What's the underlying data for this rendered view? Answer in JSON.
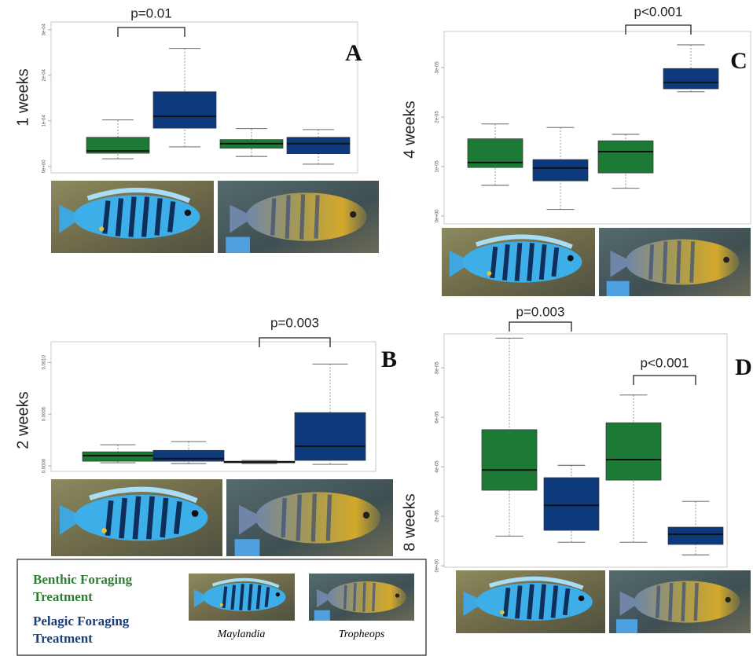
{
  "chart_data": [
    {
      "type": "box",
      "panel_label": "A",
      "ylabel": "1 weeks",
      "categories": [
        null,
        null,
        null,
        null
      ],
      "colors": [
        "#1c7a34",
        "#0d3a7c",
        "#1c7a34",
        "#0d3a7c"
      ],
      "values": [
        [
          1.7e-05,
          2.9e-05,
          3.4e-05,
          6.4e-05,
          0.000102
        ],
        [
          4.3e-05,
          8.4e-05,
          0.00011,
          0.000164,
          0.000259
        ],
        [
          2.2e-05,
          4e-05,
          5e-05,
          5.9e-05,
          8.3e-05
        ],
        [
          5e-06,
          2.8e-05,
          5e-05,
          6.4e-05,
          8.1e-05
        ]
      ],
      "ylim": [
        -1.4e-05,
        0.000317
      ],
      "yticks": [
        {
          "value": 0,
          "label": "0e+00"
        },
        {
          "value": 0.0001,
          "label": "1e-04"
        },
        {
          "value": 0.0002,
          "label": "2e-04"
        },
        {
          "value": 0.0003,
          "label": "3e-04"
        }
      ],
      "annotations": [
        "p=0.01"
      ]
    },
    {
      "type": "box",
      "panel_label": "B",
      "ylabel": "2 weeks",
      "categories": [
        null,
        null,
        null,
        null
      ],
      "colors": [
        "#1c7a34",
        "#0d3a7c",
        "#1c7a34",
        "#0d3a7c"
      ],
      "values": [
        [
          3e-05,
          4.5e-05,
          0.0001,
          0.000136,
          0.000205
        ],
        [
          2.3e-05,
          4.5e-05,
          7e-05,
          0.00015,
          0.000235
        ],
        [
          2.3e-05,
          3e-05,
          3.8e-05,
          4.5e-05,
          5.3e-05
        ],
        [
          1.5e-05,
          5.3e-05,
          0.00019,
          0.000515,
          0.000985
        ]
      ],
      "ylim": [
        -5.3e-05,
        0.0012
      ],
      "yticks": [
        {
          "value": 0,
          "label": "0.0000"
        },
        {
          "value": 0.0005,
          "label": "0.0005"
        },
        {
          "value": 0.001,
          "label": "0.0010"
        }
      ],
      "annotations": [
        "p=0.003"
      ]
    },
    {
      "type": "box",
      "panel_label": "C",
      "ylabel": "4 weeks",
      "categories": [
        null,
        null,
        null,
        null
      ],
      "colors": [
        "#1c7a34",
        "#0d3a7c",
        "#1c7a34",
        "#0d3a7c"
      ],
      "values": [
        [
          6.2e-06,
          9.8e-06,
          1.08e-05,
          1.56e-05,
          1.86e-05
        ],
        [
          1.3e-06,
          7.1e-06,
          9.7e-06,
          1.14e-05,
          1.79e-05
        ],
        [
          5.6e-06,
          8.7e-06,
          1.3e-05,
          1.52e-05,
          1.65e-05
        ],
        [
          2.51e-05,
          2.57e-05,
          2.7e-05,
          2.98e-05,
          3.46e-05
        ]
      ],
      "ylim": [
        -1.6e-06,
        3.73e-05
      ],
      "yticks": [
        {
          "value": 0,
          "label": "0e+00"
        },
        {
          "value": 1e-05,
          "label": "1e-05"
        },
        {
          "value": 2e-05,
          "label": "2e-05"
        },
        {
          "value": 3e-05,
          "label": "3e-05"
        }
      ],
      "annotations": [
        "p<0.001"
      ]
    },
    {
      "type": "box",
      "panel_label": "D",
      "ylabel": "8 weeks",
      "categories": [
        null,
        null,
        null,
        null
      ],
      "colors": [
        "#1c7a34",
        "#0d3a7c",
        "#1c7a34",
        "#0d3a7c"
      ],
      "values": [
        [
          1.2e-05,
          3.05e-05,
          3.87e-05,
          5.5e-05,
          9.2e-05
        ],
        [
          9.5e-06,
          1.43e-05,
          2.44e-05,
          3.56e-05,
          4.06e-05
        ],
        [
          9.5e-06,
          3.46e-05,
          4.29e-05,
          5.78e-05,
          6.9e-05
        ],
        [
          4.4e-06,
          8.6e-06,
          1.27e-05,
          1.56e-05,
          2.6e-05
        ]
      ],
      "ylim": [
        -6e-07,
        9.37e-05
      ],
      "yticks": [
        {
          "value": 0,
          "label": "0e+00"
        },
        {
          "value": 2e-05,
          "label": "2e-05"
        },
        {
          "value": 4e-05,
          "label": "4e-05"
        },
        {
          "value": 6e-05,
          "label": "6e-05"
        },
        {
          "value": 8e-05,
          "label": "8e-05"
        }
      ],
      "annotations": [
        "p=0.003",
        "p<0.001"
      ]
    }
  ],
  "legend": {
    "entries": [
      {
        "label": "Benthic Foraging Treatment",
        "color": "#2e7d32"
      },
      {
        "label": "Pelagic Foraging Treatment",
        "color": "#1b3f7a"
      }
    ],
    "species": [
      "Maylandia",
      "Tropheops"
    ]
  }
}
